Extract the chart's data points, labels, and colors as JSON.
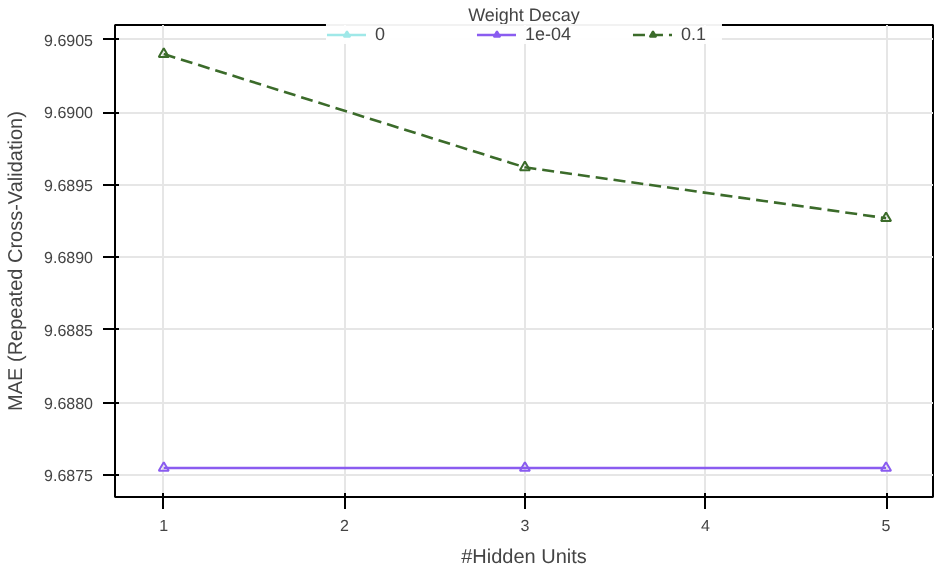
{
  "chart_data": {
    "type": "line",
    "xlabel": "#Hidden Units",
    "ylabel": "MAE (Repeated Cross-Validation)",
    "legend_title": "Weight Decay",
    "x": [
      1,
      3,
      5
    ],
    "series": [
      {
        "name": "0",
        "color": "#9fe8e8",
        "values": [
          null,
          null,
          null
        ],
        "line_style": "solid"
      },
      {
        "name": "1e-04",
        "color": "#8a5cf0",
        "values": [
          9.68755,
          9.68755,
          9.68755
        ],
        "line_style": "solid"
      },
      {
        "name": "0.1",
        "color": "#3b6b2a",
        "values": [
          9.6904,
          9.68962,
          9.68927
        ],
        "line_style": "dashed"
      }
    ],
    "xlim": [
      0.73,
      5.26
    ],
    "ylim": [
      9.68735,
      9.6906
    ],
    "xticks": [
      1,
      2,
      3,
      4,
      5
    ],
    "yticks": [
      {
        "value": 9.6875,
        "label": "9.6875"
      },
      {
        "value": 9.688,
        "label": "9.6880"
      },
      {
        "value": 9.6885,
        "label": "9.6885"
      },
      {
        "value": 9.689,
        "label": "9.6890"
      },
      {
        "value": 9.6895,
        "label": "9.6895"
      },
      {
        "value": 9.69,
        "label": "9.6900"
      },
      {
        "value": 9.6905,
        "label": "9.6905"
      }
    ],
    "grid": true,
    "legend": "top",
    "marker": "triangle"
  }
}
